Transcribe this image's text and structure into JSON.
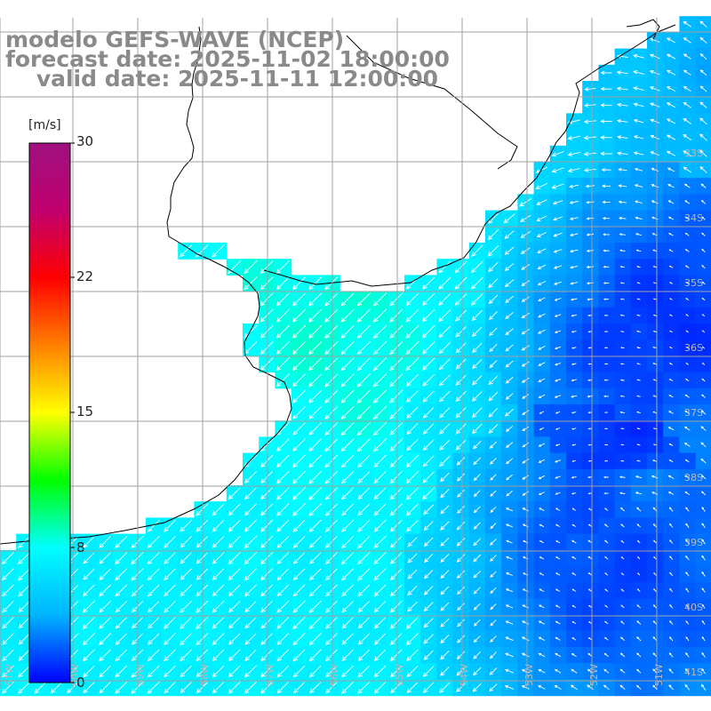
{
  "title": {
    "line1": "modelo GEFS-WAVE (NCEP)",
    "line2": "forecast date: 2025-11-02 18:00:00",
    "line3": "    valid date: 2025-11-11 12:00:00"
  },
  "legend": {
    "unit": "[m/s]",
    "ticks": [
      "30",
      "22",
      "15",
      "8",
      "0"
    ],
    "tick_values": [
      30,
      22,
      15,
      8,
      0
    ],
    "range": [
      0,
      30
    ],
    "colors": [
      "#0000ff",
      "#00b4ff",
      "#00ffff",
      "#00ff00",
      "#ffff00",
      "#ff8000",
      "#ff0000",
      "#c0006e",
      "#a01080"
    ]
  },
  "grid": {
    "lat_labels": [
      "33S",
      "34S",
      "35S",
      "36S",
      "37S",
      "38S",
      "39S",
      "40S",
      "41S"
    ],
    "lon_labels": [
      "61W",
      "60W",
      "59W",
      "58W",
      "57W",
      "56W",
      "55W",
      "54W",
      "53W",
      "52W",
      "51W"
    ]
  },
  "colors": {
    "land": "#ffffff",
    "coast": "#000000",
    "grid": "#a0a0a0",
    "arrow": "#ffffff",
    "title": "#8a8a8a"
  }
}
